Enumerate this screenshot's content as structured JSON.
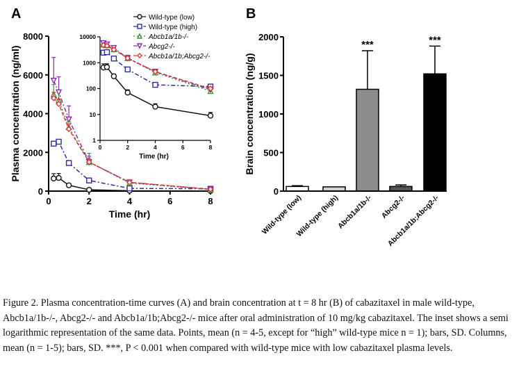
{
  "chart_data": [
    {
      "panel": "A",
      "type": "line",
      "ylabel": "Plasma concentration (ng/ml)",
      "xlabel": "Time (hr)",
      "xlim": [
        0,
        8
      ],
      "ylim": [
        0,
        8000
      ],
      "xticks": [
        "0",
        "2",
        "4",
        "6",
        "8"
      ],
      "yticks": [
        "0",
        "2000",
        "4000",
        "6000",
        "8000"
      ],
      "x": [
        0.25,
        0.5,
        1,
        2,
        4,
        8
      ],
      "series": [
        {
          "name": "Wild-type (low)",
          "color": "#111111",
          "marker": "circle",
          "dash": "",
          "values": [
            650,
            680,
            300,
            70,
            20,
            9
          ],
          "sd": [
            250,
            230,
            60,
            20,
            6,
            3
          ]
        },
        {
          "name": "Wild-type (high)",
          "color": "#2b2ba6",
          "marker": "square",
          "dash": "6 3 2 3",
          "values": [
            2450,
            2550,
            1450,
            550,
            140,
            120
          ],
          "sd": [
            0,
            0,
            0,
            0,
            0,
            0
          ]
        },
        {
          "name": "Abcb1a/1b-/-",
          "color": "#3a963a",
          "marker": "triangle",
          "dash": "2 3",
          "values": [
            5000,
            4700,
            3300,
            1500,
            420,
            80
          ],
          "sd": [
            500,
            400,
            300,
            450,
            120,
            15
          ]
        },
        {
          "name": "Abcg2-/-",
          "color": "#8a2aaa",
          "marker": "triangle-down",
          "dash": "6 3 2 3",
          "values": [
            5700,
            5100,
            3700,
            1500,
            450,
            90
          ],
          "sd": [
            1200,
            800,
            700,
            300,
            80,
            15
          ]
        },
        {
          "name": "Abcb1a/1b;Abcg2-/-",
          "color": "#e03232",
          "marker": "diamond",
          "dash": "5 3",
          "values": [
            4800,
            4500,
            3200,
            1500,
            450,
            100
          ],
          "sd": [
            300,
            250,
            250,
            200,
            60,
            15
          ]
        }
      ],
      "inset": {
        "type": "line",
        "yscale": "log",
        "xlabel": "Time (hr)",
        "xlim": [
          0,
          8
        ],
        "ylim": [
          1,
          10000
        ],
        "xticks": [
          "0",
          "2",
          "4",
          "6",
          "8"
        ],
        "yticks": [
          "1",
          "10",
          "100",
          "1000",
          "10000"
        ]
      }
    },
    {
      "panel": "B",
      "type": "bar",
      "ylabel": "Brain concentration (ng/g)",
      "ylim": [
        0,
        2000
      ],
      "yticks": [
        "0",
        "500",
        "1000",
        "1500",
        "2000"
      ],
      "categories": [
        "Wild-type (low)",
        "Wild-type (high)",
        "Abcb1a/1b-/-",
        "Abcg2-/-",
        "Abcb1a/1b;Abcg2-/-"
      ],
      "values": [
        60,
        55,
        1320,
        60,
        1520
      ],
      "sd": [
        10,
        0,
        500,
        20,
        360
      ],
      "colors": [
        "#ffffff",
        "#d4d4d4",
        "#8c8c8c",
        "#555555",
        "#000000"
      ],
      "annotations": [
        "",
        "",
        "***",
        "",
        "***"
      ]
    }
  ],
  "caption": "Figure 2. Plasma concentration-time curves (A) and brain concentration at t = 8 hr (B) of cabazitaxel in male wild-type, Abcb1a/1b-/-, Abcg2-/- and Abcb1a/1b;Abcg2-/- mice after oral administration of 10 mg/kg cabazitaxel. The inset shows a semi logarithmic representation of the same data. Points, mean (n = 4-5, except for “high” wild-type mice n = 1); bars, SD. Columns, mean (n = 1-5); bars, SD. ***, P < 0.001 when compared with wild-type mice with low cabazitaxel plasma levels."
}
